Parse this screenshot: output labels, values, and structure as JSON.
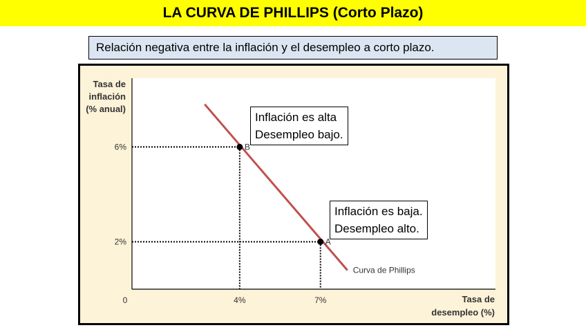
{
  "title": "LA CURVA DE PHILLIPS (Corto Plazo)",
  "subtitle": "Relación negativa entre la inflación y el desempleo a  corto plazo.",
  "colors": {
    "title_bg": "#ffff00",
    "subtitle_bg": "#dce6f2",
    "frame_bg": "#fdf3d8",
    "curve": "#c0504d"
  },
  "chart_data": {
    "type": "line",
    "ylabel": [
      "Tasa de",
      "inflación",
      "(% anual)"
    ],
    "xlabel": [
      "Tasa de",
      "desempleo (%)"
    ],
    "x_origin_label": "0",
    "x_ticks": [
      {
        "value": 4,
        "label": "4%"
      },
      {
        "value": 7,
        "label": "7%"
      }
    ],
    "y_ticks": [
      {
        "value": 6,
        "label": "6%"
      },
      {
        "value": 2,
        "label": "2%"
      }
    ],
    "xlim": [
      0,
      13.5
    ],
    "ylim": [
      0,
      8.9
    ],
    "series": [
      {
        "name": "Curva de Phillips",
        "x": [
          2.7,
          8.0
        ],
        "y": [
          7.8,
          0.8
        ]
      }
    ],
    "points": [
      {
        "label": "B",
        "x": 4,
        "y": 6
      },
      {
        "label": "A",
        "x": 7,
        "y": 2
      }
    ],
    "annotations": [
      {
        "lines": [
          "Inflación es alta",
          "Desempleo bajo."
        ]
      },
      {
        "lines": [
          "Inflación es baja.",
          "Desempleo alto."
        ]
      }
    ]
  }
}
